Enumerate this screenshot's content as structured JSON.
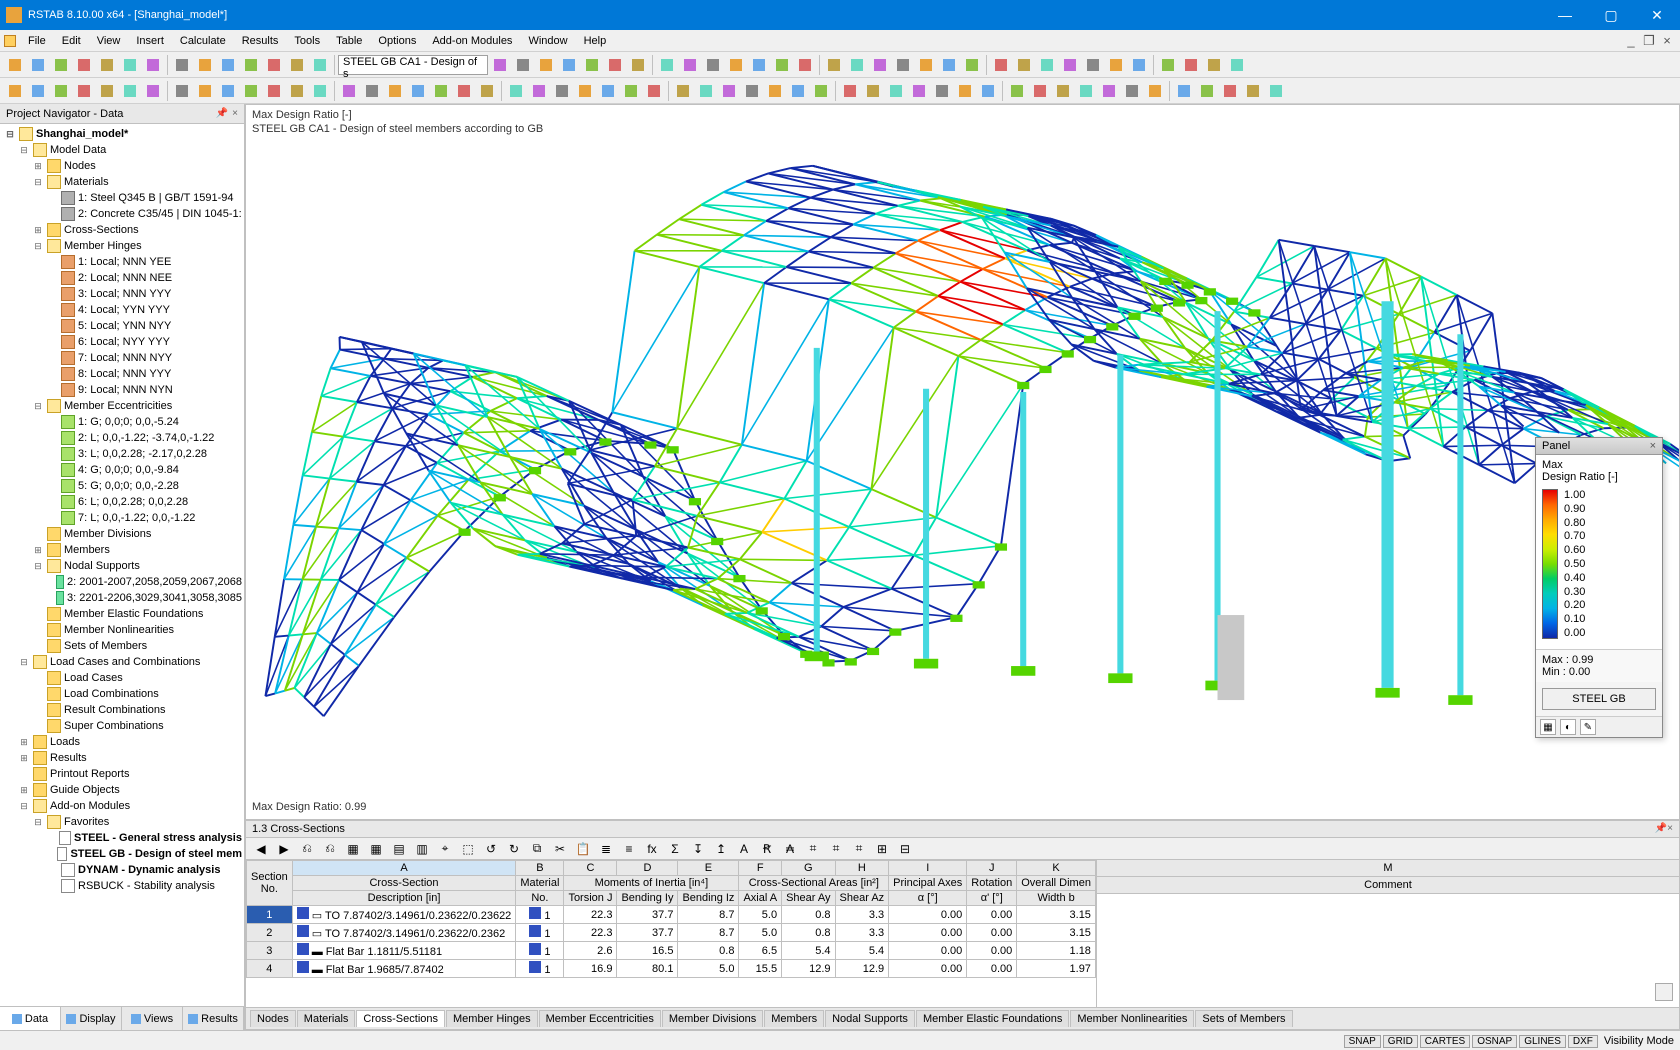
{
  "app": {
    "title": "RSTAB 8.10.00 x64 - [Shanghai_model*]"
  },
  "menus": [
    "File",
    "Edit",
    "View",
    "Insert",
    "Calculate",
    "Results",
    "Tools",
    "Table",
    "Options",
    "Add-on Modules",
    "Window",
    "Help"
  ],
  "toolbar_combo": "STEEL GB CA1 - Design of s",
  "navigator": {
    "title": "Project Navigator - Data",
    "root": "Shanghai_model*",
    "tabs": [
      "Data",
      "Display",
      "Views",
      "Results"
    ],
    "active_tab": 0,
    "model_data": {
      "label": "Model Data",
      "nodes_label": "Nodes",
      "materials": {
        "label": "Materials",
        "items": [
          "1: Steel Q345 B | GB/T 1591-94",
          "2: Concrete C35/45 | DIN 1045-1:"
        ]
      },
      "cross_sections_label": "Cross-Sections",
      "member_hinges": {
        "label": "Member Hinges",
        "items": [
          "1: Local; NNN YEE",
          "2: Local; NNN NEE",
          "3: Local; NNN YYY",
          "4: Local; YYN YYY",
          "5: Local; YNN NYY",
          "6: Local; NYY YYY",
          "7: Local; NNN NYY",
          "8: Local; NNN YYY",
          "9: Local; NNN NYN"
        ]
      },
      "member_ecc": {
        "label": "Member Eccentricities",
        "items": [
          "1: G; 0,0;0; 0,0,-5.24",
          "2: L; 0,0,-1.22; -3.74,0,-1.22",
          "3: L; 0,0,2.28; -2.17,0,2.28",
          "4: G; 0,0;0; 0,0,-9.84",
          "5: G; 0,0;0; 0,0,-2.28",
          "6: L; 0,0,2.28; 0,0,2.28",
          "7: L; 0,0,-1.22; 0,0,-1.22"
        ]
      },
      "member_divisions_label": "Member Divisions",
      "members_label": "Members",
      "nodal_supports": {
        "label": "Nodal Supports",
        "items": [
          "2: 2001-2007,2058,2059,2067,2068",
          "3: 2201-2206,3029,3041,3058,3085"
        ]
      },
      "mef_label": "Member Elastic Foundations",
      "mnl_label": "Member Nonlinearities",
      "som_label": "Sets of Members"
    },
    "lcc": {
      "label": "Load Cases and Combinations",
      "items": [
        "Load Cases",
        "Load Combinations",
        "Result Combinations",
        "Super Combinations"
      ]
    },
    "loads_label": "Loads",
    "results_label": "Results",
    "printout_label": "Printout Reports",
    "guide_label": "Guide Objects",
    "addon_label": "Add-on Modules",
    "favorites": {
      "label": "Favorites",
      "items": [
        "STEEL - General stress analysis",
        "STEEL GB - Design of steel mem",
        "DYNAM - Dynamic analysis",
        "RSBUCK - Stability analysis"
      ]
    }
  },
  "viewport": {
    "line1": "Max Design Ratio [-]",
    "line2": "STEEL GB CA1 - Design of steel members according to GB",
    "footer": "Max Design Ratio: 0.99",
    "structure_colors": [
      "#1029a8",
      "#1029a8",
      "#00b3e6",
      "#00e0b0",
      "#7bd400",
      "#ffcc00",
      "#ff6600",
      "#e60000"
    ],
    "support_color": "#55d400",
    "column_color": "#45d9e0"
  },
  "panel": {
    "title": "Panel",
    "line1": "Max",
    "line2": "Design Ratio [-]",
    "legend": {
      "values": [
        "1.00",
        "0.90",
        "0.80",
        "0.70",
        "0.60",
        "0.50",
        "0.40",
        "0.30",
        "0.20",
        "0.10",
        "0.00"
      ],
      "colors": [
        "#e60000",
        "#ff6600",
        "#ffaa00",
        "#ffdd00",
        "#ccee00",
        "#77dd00",
        "#00cc66",
        "#00ccbb",
        "#00b3e6",
        "#0066e6",
        "#1029a8"
      ]
    },
    "max": "Max  :   0.99",
    "min": "Min   :   0.00",
    "button": "STEEL GB"
  },
  "table": {
    "title": "1.3 Cross-Sections",
    "group_headers": [
      "Cross-Section",
      "Material",
      "Moments of Inertia [in⁴]",
      "Cross-Sectional Areas [in²]",
      "Principal Axes",
      "Rotation",
      "Overall Dimen"
    ],
    "col_letters": [
      "A",
      "B",
      "C",
      "D",
      "E",
      "F",
      "G",
      "H",
      "I",
      "J",
      "K"
    ],
    "sub_headers": [
      "Description [in]",
      "No.",
      "Torsion J",
      "Bending Iy",
      "Bending Iz",
      "Axial A",
      "Shear Ay",
      "Shear Az",
      "α [°]",
      "α' [°]",
      "Width b"
    ],
    "section_col": "Section\nNo.",
    "col_M": "M",
    "comment_header": "Comment",
    "rows": [
      {
        "n": "1",
        "desc": "TO 7.87402/3.14961/0.23622/0.23622",
        "mat": "1",
        "j": "22.3",
        "iy": "37.7",
        "iz": "8.7",
        "a": "5.0",
        "ay": "0.8",
        "az": "3.3",
        "pa": "0.00",
        "rot": "0.00",
        "w": "3.15"
      },
      {
        "n": "2",
        "desc": "TO 7.87402/3.14961/0.23622/0.2362",
        "mat": "1",
        "j": "22.3",
        "iy": "37.7",
        "iz": "8.7",
        "a": "5.0",
        "ay": "0.8",
        "az": "3.3",
        "pa": "0.00",
        "rot": "0.00",
        "w": "3.15"
      },
      {
        "n": "3",
        "desc": "Flat Bar 1.1811/5.51181",
        "mat": "1",
        "j": "2.6",
        "iy": "16.5",
        "iz": "0.8",
        "a": "6.5",
        "ay": "5.4",
        "az": "5.4",
        "pa": "0.00",
        "rot": "0.00",
        "w": "1.18"
      },
      {
        "n": "4",
        "desc": "Flat Bar 1.9685/7.87402",
        "mat": "1",
        "j": "16.9",
        "iy": "80.1",
        "iz": "5.0",
        "a": "15.5",
        "ay": "12.9",
        "az": "12.9",
        "pa": "0.00",
        "rot": "0.00",
        "w": "1.97"
      }
    ],
    "tabs": [
      "Nodes",
      "Materials",
      "Cross-Sections",
      "Member Hinges",
      "Member Eccentricities",
      "Member Divisions",
      "Members",
      "Nodal Supports",
      "Member Elastic Foundations",
      "Member Nonlinearities",
      "Sets of Members"
    ],
    "active_tab": 2
  },
  "status": {
    "cells": [
      "SNAP",
      "GRID",
      "CARTES",
      "OSNAP",
      "GLINES",
      "DXF"
    ],
    "vis": "Visibility Mode"
  }
}
